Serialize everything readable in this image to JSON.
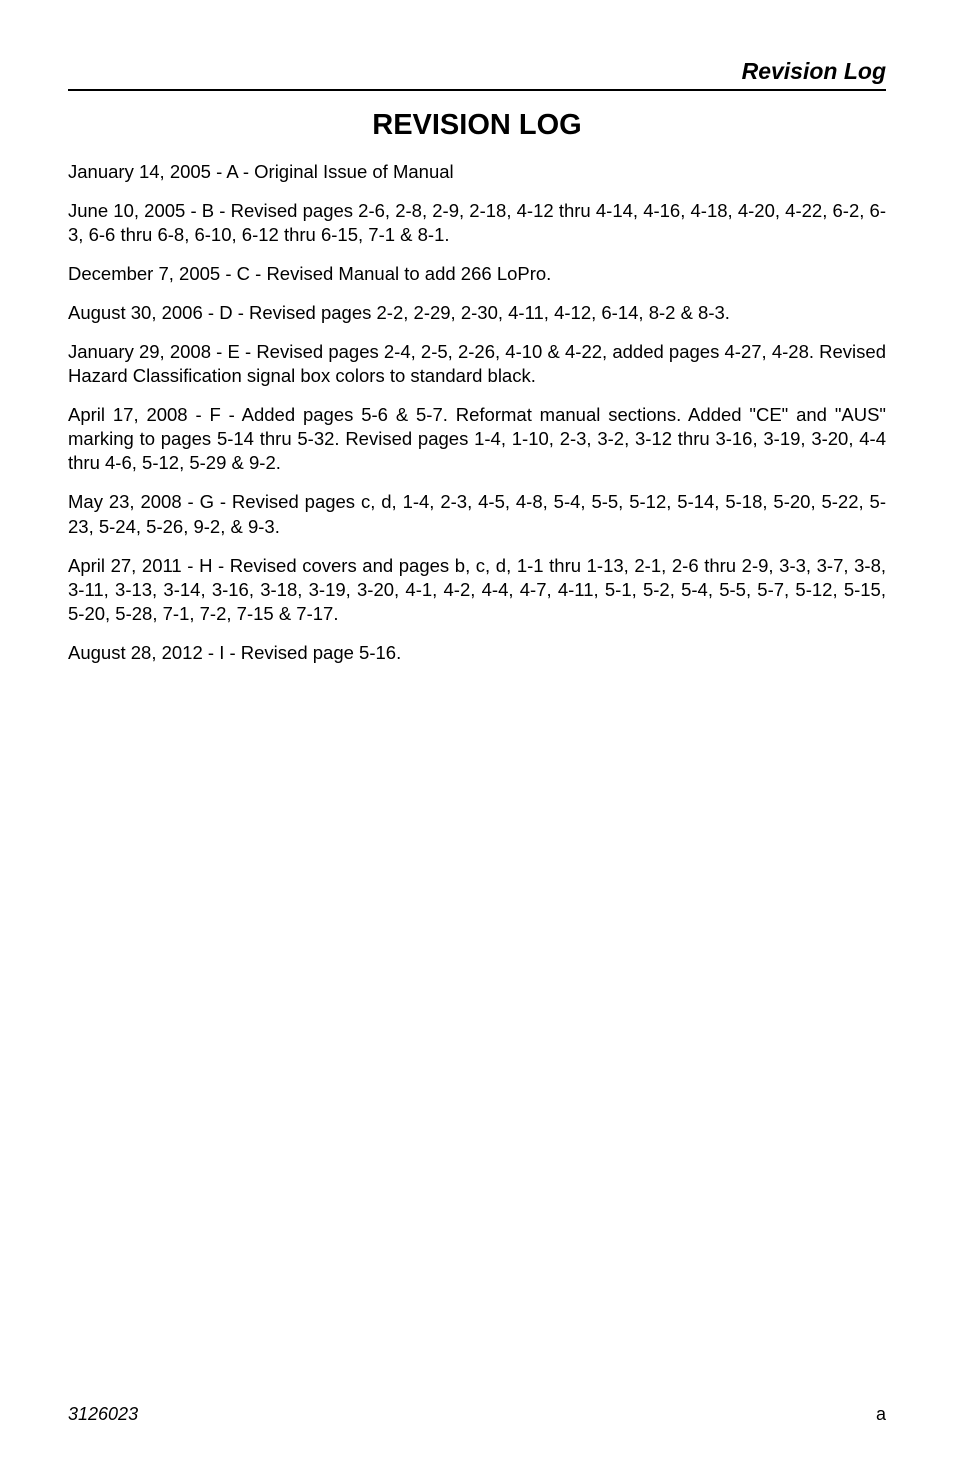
{
  "header": {
    "section_title": "Revision Log"
  },
  "title": "REVISION LOG",
  "entries": [
    "January 14, 2005 - A - Original Issue of Manual",
    "June 10, 2005 - B - Revised pages 2-6, 2-8, 2-9, 2-18, 4-12 thru 4-14, 4-16, 4-18, 4-20, 4-22, 6-2, 6-3, 6-6 thru 6-8, 6-10, 6-12 thru 6-15, 7-1 & 8-1.",
    "December 7, 2005 - C - Revised Manual to add 266 LoPro.",
    "August 30, 2006 - D - Revised pages 2-2, 2-29, 2-30, 4-11, 4-12, 6-14, 8-2 & 8-3.",
    "January 29, 2008 - E - Revised pages 2-4, 2-5, 2-26, 4-10 & 4-22, added pages 4-27, 4-28. Revised Hazard Classification signal box colors to standard black.",
    "April 17, 2008 - F - Added pages 5-6 & 5-7. Reformat manual sections. Added \"CE\" and \"AUS\" marking to pages 5-14 thru 5-32. Revised pages 1-4, 1-10, 2-3, 3-2, 3-12 thru 3-16, 3-19, 3-20, 4-4 thru 4-6, 5-12, 5-29 & 9-2.",
    "May 23, 2008 - G - Revised pages c, d, 1-4, 2-3, 4-5, 4-8, 5-4, 5-5, 5-12, 5-14, 5-18, 5-20, 5-22, 5-23, 5-24, 5-26, 9-2, & 9-3.",
    "April 27, 2011 - H - Revised covers and pages b, c, d, 1-1 thru 1-13, 2-1, 2-6 thru 2-9, 3-3, 3-7, 3-8, 3-11, 3-13, 3-14, 3-16, 3-18, 3-19, 3-20, 4-1, 4-2, 4-4, 4-7, 4-11, 5-1, 5-2, 5-4, 5-5, 5-7, 5-12, 5-15, 5-20, 5-28, 7-1, 7-2, 7-15 & 7-17.",
    "August 28, 2012 - I - Revised page 5-16."
  ],
  "footer": {
    "doc_number": "3126023",
    "page_label": "a"
  }
}
